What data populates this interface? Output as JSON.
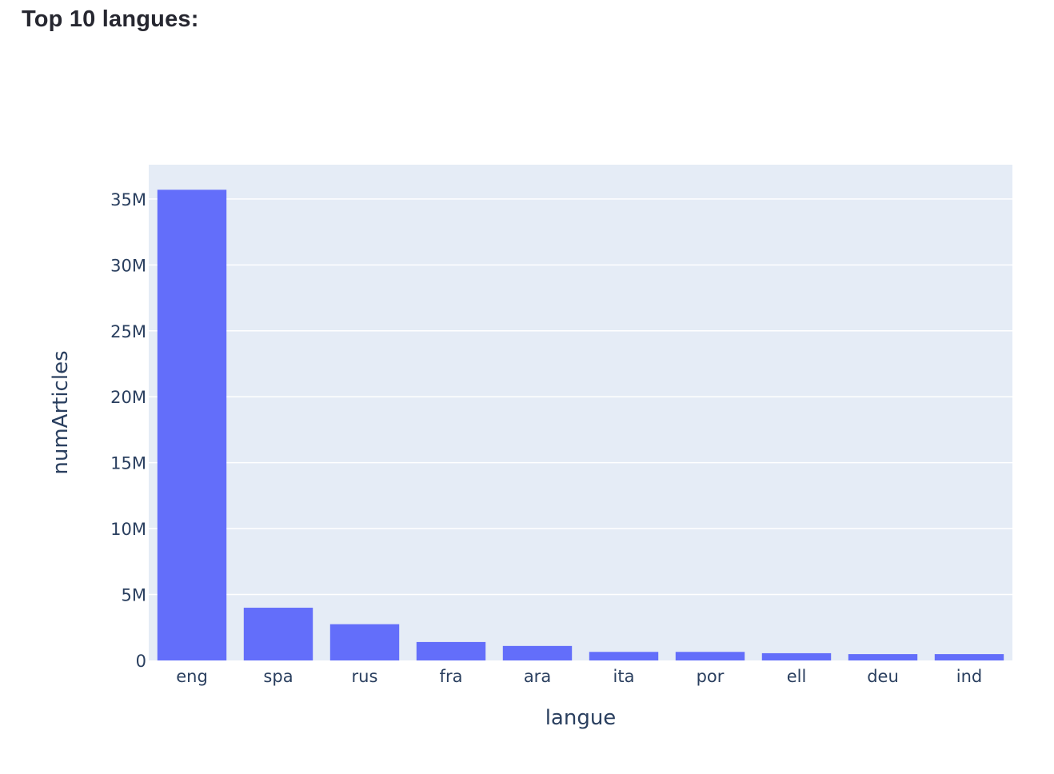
{
  "page": {
    "heading": "Top 10 langues:"
  },
  "chart_data": {
    "type": "bar",
    "title": "",
    "xlabel": "langue",
    "ylabel": "numArticles",
    "categories": [
      "eng",
      "spa",
      "rus",
      "fra",
      "ara",
      "ita",
      "por",
      "ell",
      "deu",
      "ind"
    ],
    "values": [
      35700000,
      4000000,
      2750000,
      1400000,
      1100000,
      650000,
      650000,
      550000,
      480000,
      480000
    ],
    "ylim": [
      0,
      37600000
    ],
    "yticks": [
      0,
      5000000,
      10000000,
      15000000,
      20000000,
      25000000,
      30000000,
      35000000
    ],
    "ytick_labels": [
      "0",
      "5M",
      "10M",
      "15M",
      "20M",
      "25M",
      "30M",
      "35M"
    ],
    "grid": true,
    "legend": "none",
    "colors": {
      "bar": "#636efa",
      "plot_background": "#e5ecf6",
      "grid": "#ffffff",
      "text": "#2a3f5f"
    }
  }
}
